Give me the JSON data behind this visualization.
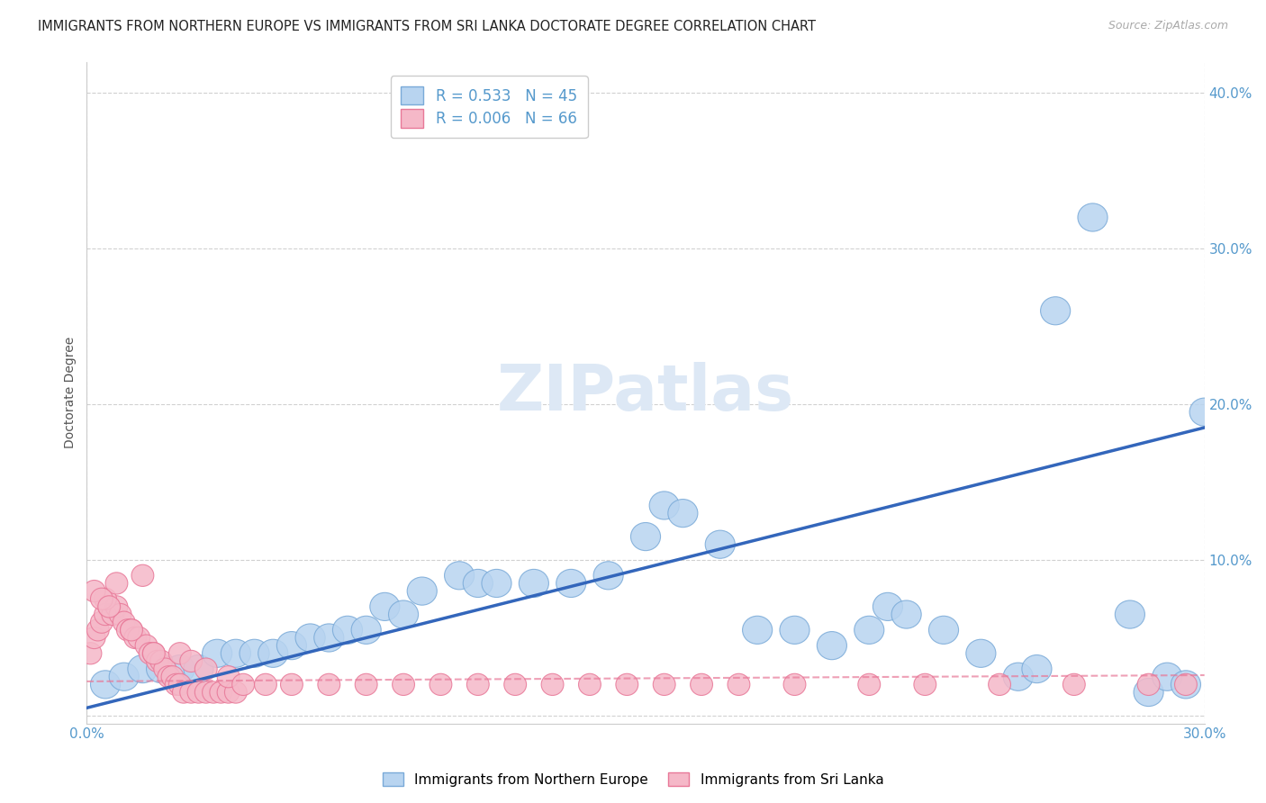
{
  "title": "IMMIGRANTS FROM NORTHERN EUROPE VS IMMIGRANTS FROM SRI LANKA DOCTORATE DEGREE CORRELATION CHART",
  "source": "Source: ZipAtlas.com",
  "ylabel": "Doctorate Degree",
  "xlabel_blue": "Immigrants from Northern Europe",
  "xlabel_pink": "Immigrants from Sri Lanka",
  "watermark": "ZIPatlas",
  "legend_blue_R": "0.533",
  "legend_blue_N": "45",
  "legend_pink_R": "0.006",
  "legend_pink_N": "66",
  "xmin": 0.0,
  "xmax": 0.3,
  "ymin": -0.005,
  "ymax": 0.42,
  "blue_scatter_x": [
    0.005,
    0.01,
    0.015,
    0.02,
    0.025,
    0.03,
    0.035,
    0.04,
    0.045,
    0.05,
    0.055,
    0.06,
    0.065,
    0.07,
    0.075,
    0.08,
    0.085,
    0.09,
    0.1,
    0.105,
    0.11,
    0.12,
    0.13,
    0.14,
    0.15,
    0.155,
    0.16,
    0.17,
    0.18,
    0.19,
    0.2,
    0.21,
    0.215,
    0.22,
    0.23,
    0.24,
    0.25,
    0.255,
    0.26,
    0.27,
    0.28,
    0.285,
    0.29,
    0.295,
    0.3
  ],
  "blue_scatter_y": [
    0.02,
    0.025,
    0.03,
    0.03,
    0.03,
    0.03,
    0.04,
    0.04,
    0.04,
    0.04,
    0.045,
    0.05,
    0.05,
    0.055,
    0.055,
    0.07,
    0.065,
    0.08,
    0.09,
    0.085,
    0.085,
    0.085,
    0.085,
    0.09,
    0.115,
    0.135,
    0.13,
    0.11,
    0.055,
    0.055,
    0.045,
    0.055,
    0.07,
    0.065,
    0.055,
    0.04,
    0.025,
    0.03,
    0.26,
    0.32,
    0.065,
    0.015,
    0.025,
    0.02,
    0.195
  ],
  "pink_scatter_x": [
    0.001,
    0.002,
    0.003,
    0.004,
    0.005,
    0.006,
    0.007,
    0.008,
    0.009,
    0.01,
    0.011,
    0.012,
    0.013,
    0.014,
    0.015,
    0.016,
    0.017,
    0.018,
    0.019,
    0.02,
    0.021,
    0.022,
    0.023,
    0.024,
    0.025,
    0.026,
    0.028,
    0.03,
    0.032,
    0.034,
    0.036,
    0.038,
    0.04,
    0.005,
    0.008,
    0.012,
    0.018,
    0.025,
    0.028,
    0.032,
    0.038,
    0.042,
    0.048,
    0.055,
    0.065,
    0.075,
    0.085,
    0.095,
    0.105,
    0.115,
    0.125,
    0.135,
    0.145,
    0.155,
    0.165,
    0.175,
    0.19,
    0.21,
    0.225,
    0.245,
    0.265,
    0.285,
    0.295,
    0.002,
    0.004,
    0.006
  ],
  "pink_scatter_y": [
    0.04,
    0.05,
    0.055,
    0.06,
    0.065,
    0.07,
    0.065,
    0.07,
    0.065,
    0.06,
    0.055,
    0.055,
    0.05,
    0.05,
    0.09,
    0.045,
    0.04,
    0.04,
    0.035,
    0.035,
    0.03,
    0.025,
    0.025,
    0.02,
    0.02,
    0.015,
    0.015,
    0.015,
    0.015,
    0.015,
    0.015,
    0.015,
    0.015,
    0.075,
    0.085,
    0.055,
    0.04,
    0.04,
    0.035,
    0.03,
    0.025,
    0.02,
    0.02,
    0.02,
    0.02,
    0.02,
    0.02,
    0.02,
    0.02,
    0.02,
    0.02,
    0.02,
    0.02,
    0.02,
    0.02,
    0.02,
    0.02,
    0.02,
    0.02,
    0.02,
    0.02,
    0.02,
    0.02,
    0.08,
    0.075,
    0.07
  ],
  "blue_line_x": [
    0.0,
    0.3
  ],
  "blue_line_y": [
    0.005,
    0.185
  ],
  "pink_line_x": [
    0.0,
    0.3
  ],
  "pink_line_y": [
    0.022,
    0.026
  ],
  "blue_color": "#b8d4f0",
  "pink_color": "#f5b8c8",
  "blue_edge_color": "#7aaad8",
  "pink_edge_color": "#e87898",
  "blue_line_color": "#3366bb",
  "pink_line_color": "#e87898",
  "grid_color": "#cccccc",
  "background_color": "#ffffff",
  "title_fontsize": 10.5,
  "source_fontsize": 9,
  "ylabel_fontsize": 10,
  "tick_label_color": "#5599cc",
  "watermark_color": "#dde8f5",
  "watermark_fontsize": 52,
  "ytick_positions": [
    0.0,
    0.1,
    0.2,
    0.3,
    0.4
  ],
  "ytick_labels": [
    "",
    "10.0%",
    "20.0%",
    "30.0%",
    "40.0%"
  ],
  "xtick_positions": [
    0.0,
    0.3
  ],
  "xtick_labels": [
    "0.0%",
    "30.0%"
  ]
}
